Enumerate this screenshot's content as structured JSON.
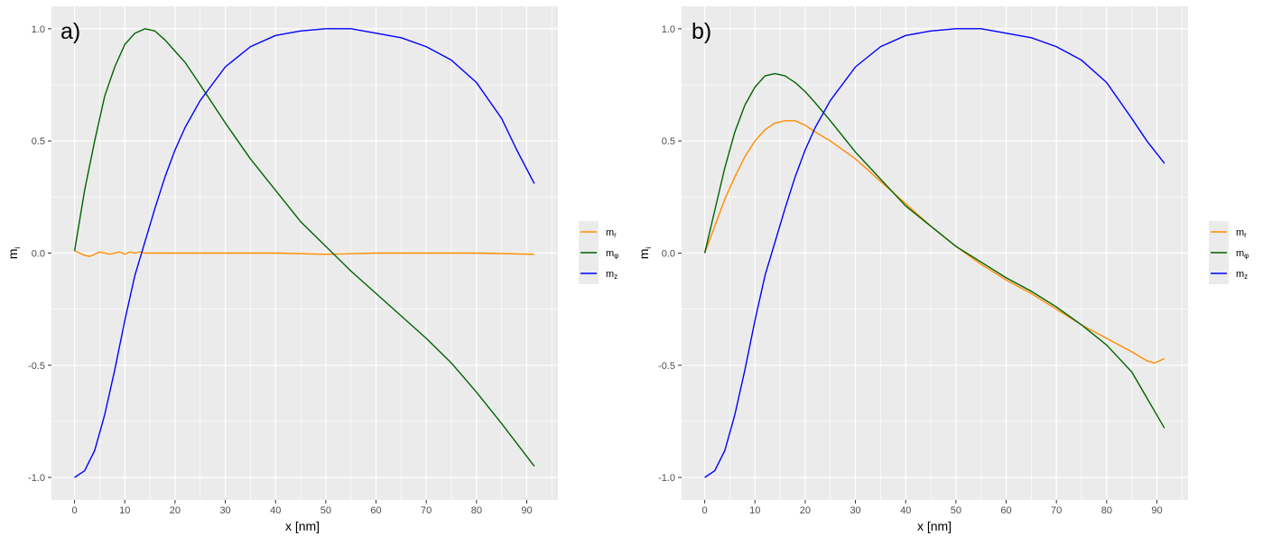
{
  "chart_data": [
    {
      "type": "line",
      "panel_label": "a)",
      "xlabel": "x [nm]",
      "ylabel": {
        "base": "m",
        "sub": "i"
      },
      "xlim": [
        -4.6,
        96.2
      ],
      "ylim": [
        -1.1,
        1.1
      ],
      "xticks": [
        0,
        10,
        20,
        30,
        40,
        50,
        60,
        70,
        80,
        90
      ],
      "xtick_labels": [
        "0",
        "10",
        "20",
        "30",
        "40",
        "50",
        "60",
        "70",
        "80",
        "90"
      ],
      "yticks": [
        -1.0,
        -0.5,
        0.0,
        0.5,
        1.0
      ],
      "ytick_labels": [
        "-1.0",
        "-0.5",
        "0.0",
        "0.5",
        "1.0"
      ],
      "grid": true,
      "legend_position": "right",
      "series": [
        {
          "name": {
            "base": "m",
            "sub": "r"
          },
          "color": "#FF8C00",
          "x": [
            0,
            1,
            2,
            3,
            4,
            5,
            6,
            7,
            8,
            9,
            10,
            11,
            12,
            13,
            14,
            15,
            20,
            30,
            40,
            50,
            60,
            70,
            80,
            91.5
          ],
          "y": [
            0.01,
            0.0,
            -0.01,
            -0.015,
            -0.005,
            0.005,
            0.0,
            -0.005,
            0.0,
            0.005,
            -0.005,
            0.005,
            0.0,
            0.005,
            0.0,
            0.0,
            0.0,
            0.0,
            0.0,
            -0.005,
            0.0,
            0.0,
            0.0,
            -0.005
          ]
        },
        {
          "name": {
            "base": "m",
            "sub": "φ"
          },
          "color": "#006400",
          "x": [
            0,
            2,
            4,
            6,
            8,
            10,
            12,
            14,
            16,
            18,
            20,
            22,
            25,
            30,
            35,
            40,
            45,
            50,
            55,
            60,
            65,
            70,
            75,
            80,
            85,
            91.5
          ],
          "y": [
            0.01,
            0.28,
            0.5,
            0.7,
            0.83,
            0.93,
            0.98,
            1.0,
            0.99,
            0.95,
            0.9,
            0.85,
            0.75,
            0.58,
            0.42,
            0.28,
            0.14,
            0.03,
            -0.08,
            -0.18,
            -0.28,
            -0.38,
            -0.49,
            -0.62,
            -0.76,
            -0.95
          ]
        },
        {
          "name": {
            "base": "m",
            "sub": "z"
          },
          "color": "#0000FF",
          "x": [
            0,
            2,
            4,
            6,
            8,
            10,
            12,
            14,
            16,
            18,
            20,
            22,
            25,
            30,
            35,
            40,
            45,
            50,
            55,
            60,
            65,
            70,
            75,
            80,
            85,
            88,
            91.5
          ],
          "y": [
            -1.0,
            -0.97,
            -0.88,
            -0.72,
            -0.52,
            -0.3,
            -0.1,
            0.05,
            0.2,
            0.34,
            0.46,
            0.56,
            0.68,
            0.83,
            0.92,
            0.97,
            0.99,
            1.0,
            1.0,
            0.98,
            0.96,
            0.92,
            0.86,
            0.76,
            0.6,
            0.46,
            0.31
          ]
        }
      ]
    },
    {
      "type": "line",
      "panel_label": "b)",
      "xlabel": "x [nm]",
      "ylabel": {
        "base": "m",
        "sub": "i"
      },
      "xlim": [
        -4.6,
        96.2
      ],
      "ylim": [
        -1.1,
        1.1
      ],
      "xticks": [
        0,
        10,
        20,
        30,
        40,
        50,
        60,
        70,
        80,
        90
      ],
      "xtick_labels": [
        "0",
        "10",
        "20",
        "30",
        "40",
        "50",
        "60",
        "70",
        "80",
        "90"
      ],
      "yticks": [
        -1.0,
        -0.5,
        0.0,
        0.5,
        1.0
      ],
      "ytick_labels": [
        "-1.0",
        "-0.5",
        "0.0",
        "0.5",
        "1.0"
      ],
      "grid": true,
      "legend_position": "right",
      "series": [
        {
          "name": {
            "base": "m",
            "sub": "r"
          },
          "color": "#FF8C00",
          "x": [
            0,
            2,
            4,
            6,
            8,
            10,
            12,
            14,
            16,
            18,
            20,
            22,
            25,
            30,
            35,
            40,
            45,
            50,
            55,
            60,
            65,
            70,
            75,
            80,
            85,
            88,
            89.5,
            91.5
          ],
          "y": [
            0.0,
            0.12,
            0.24,
            0.34,
            0.43,
            0.5,
            0.55,
            0.58,
            0.59,
            0.59,
            0.57,
            0.54,
            0.5,
            0.42,
            0.32,
            0.22,
            0.12,
            0.03,
            -0.05,
            -0.12,
            -0.18,
            -0.25,
            -0.32,
            -0.38,
            -0.44,
            -0.48,
            -0.49,
            -0.47
          ]
        },
        {
          "name": {
            "base": "m",
            "sub": "φ"
          },
          "color": "#006400",
          "x": [
            0,
            2,
            4,
            6,
            8,
            10,
            12,
            14,
            16,
            18,
            20,
            22,
            25,
            30,
            35,
            40,
            45,
            50,
            55,
            60,
            65,
            70,
            75,
            80,
            85,
            91.5
          ],
          "y": [
            0.0,
            0.19,
            0.38,
            0.54,
            0.66,
            0.74,
            0.79,
            0.8,
            0.79,
            0.76,
            0.72,
            0.67,
            0.59,
            0.45,
            0.33,
            0.21,
            0.12,
            0.03,
            -0.04,
            -0.11,
            -0.17,
            -0.24,
            -0.32,
            -0.41,
            -0.53,
            -0.78
          ]
        },
        {
          "name": {
            "base": "m",
            "sub": "z"
          },
          "color": "#0000FF",
          "x": [
            0,
            2,
            4,
            6,
            8,
            10,
            12,
            14,
            16,
            18,
            20,
            22,
            25,
            30,
            35,
            40,
            45,
            50,
            55,
            60,
            65,
            70,
            75,
            80,
            85,
            88,
            91.5
          ],
          "y": [
            -1.0,
            -0.97,
            -0.88,
            -0.72,
            -0.52,
            -0.3,
            -0.1,
            0.05,
            0.2,
            0.34,
            0.46,
            0.56,
            0.68,
            0.83,
            0.92,
            0.97,
            0.99,
            1.0,
            1.0,
            0.98,
            0.96,
            0.92,
            0.86,
            0.76,
            0.6,
            0.5,
            0.4
          ]
        }
      ]
    }
  ]
}
